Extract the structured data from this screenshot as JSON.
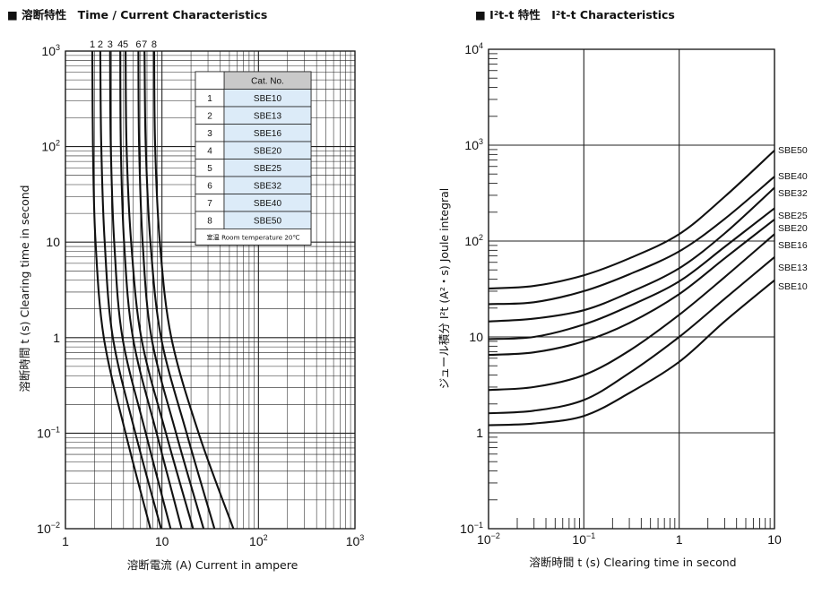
{
  "chart_data": [
    {
      "type": "line",
      "title": "■ 溶断特性　Time / Current Characteristics",
      "xlabel": "溶断電流 (A)  Current in ampere",
      "ylabel": "溶断時間 t (s)  Clearing time in second",
      "xscale": "log",
      "yscale": "log",
      "xlim": [
        1,
        1000
      ],
      "ylim": [
        0.01,
        1000
      ],
      "x_ticks": [
        {
          "base": "1",
          "exp": ""
        },
        {
          "base": "10",
          "exp": ""
        },
        {
          "base": "10",
          "exp": "2"
        },
        {
          "base": "10",
          "exp": "3"
        }
      ],
      "y_ticks": [
        {
          "base": "10",
          "exp": "−2"
        },
        {
          "base": "10",
          "exp": "−1"
        },
        {
          "base": "1",
          "exp": ""
        },
        {
          "base": "10",
          "exp": ""
        },
        {
          "base": "10",
          "exp": "2"
        },
        {
          "base": "10",
          "exp": "3"
        }
      ],
      "grid": true,
      "curve_labels": [
        "1",
        "2",
        "3",
        "4",
        "5",
        "6",
        "7",
        "8"
      ],
      "table": {
        "header": "Cat. No.",
        "rows": [
          {
            "no": "1",
            "cat": "SBE10"
          },
          {
            "no": "2",
            "cat": "SBE13"
          },
          {
            "no": "3",
            "cat": "SBE16"
          },
          {
            "no": "4",
            "cat": "SBE20"
          },
          {
            "no": "5",
            "cat": "SBE25"
          },
          {
            "no": "6",
            "cat": "SBE32"
          },
          {
            "no": "7",
            "cat": "SBE40"
          },
          {
            "no": "8",
            "cat": "SBE50"
          }
        ],
        "note": "室温 Room temperature 20℃"
      },
      "series": [
        {
          "label": "1",
          "points": [
            [
              1.9,
              1000
            ],
            [
              1.93,
              100
            ],
            [
              2.05,
              10
            ],
            [
              2.5,
              1
            ],
            [
              4.2,
              0.1
            ],
            [
              7.6,
              0.01
            ]
          ]
        },
        {
          "label": "2",
          "points": [
            [
              2.3,
              1000
            ],
            [
              2.35,
              100
            ],
            [
              2.55,
              10
            ],
            [
              3.1,
              1
            ],
            [
              5.3,
              0.1
            ],
            [
              9.8,
              0.01
            ]
          ]
        },
        {
          "label": "3",
          "points": [
            [
              2.9,
              1000
            ],
            [
              2.95,
              100
            ],
            [
              3.2,
              10
            ],
            [
              3.9,
              1
            ],
            [
              6.8,
              0.1
            ],
            [
              12.3,
              0.01
            ]
          ]
        },
        {
          "label": "4",
          "points": [
            [
              3.7,
              1000
            ],
            [
              3.75,
              100
            ],
            [
              4.05,
              10
            ],
            [
              5.0,
              1
            ],
            [
              8.8,
              0.1
            ],
            [
              16,
              0.01
            ]
          ]
        },
        {
          "label": "5",
          "points": [
            [
              4.2,
              1000
            ],
            [
              4.3,
              100
            ],
            [
              4.8,
              10
            ],
            [
              6.1,
              1
            ],
            [
              11,
              0.1
            ],
            [
              21,
              0.01
            ]
          ]
        },
        {
          "label": "6",
          "points": [
            [
              5.7,
              1000
            ],
            [
              5.8,
              100
            ],
            [
              6.3,
              10
            ],
            [
              7.8,
              1
            ],
            [
              14,
              0.1
            ],
            [
              27,
              0.01
            ]
          ]
        },
        {
          "label": "7",
          "points": [
            [
              6.6,
              1000
            ],
            [
              6.8,
              100
            ],
            [
              7.6,
              10
            ],
            [
              9.8,
              1
            ],
            [
              18,
              0.1
            ],
            [
              35,
              0.01
            ]
          ]
        },
        {
          "label": "8",
          "points": [
            [
              8.3,
              1000
            ],
            [
              8.5,
              100
            ],
            [
              9.5,
              10
            ],
            [
              12.5,
              1
            ],
            [
              24,
              0.1
            ],
            [
              55,
              0.01
            ]
          ]
        }
      ]
    },
    {
      "type": "line",
      "title": "■ I²t-t 特性　I²t-t Characteristics",
      "xlabel": "溶断時間 t (s)  Clearing time in second",
      "ylabel": "ジュール積分 I²t (A²・s)  Joule integral",
      "xscale": "log",
      "yscale": "log",
      "xlim": [
        0.01,
        10
      ],
      "ylim": [
        0.1,
        10000
      ],
      "x_ticks": [
        {
          "base": "10",
          "exp": "−2"
        },
        {
          "base": "10",
          "exp": "−1"
        },
        {
          "base": "1",
          "exp": ""
        },
        {
          "base": "10",
          "exp": ""
        }
      ],
      "y_ticks": [
        {
          "base": "10",
          "exp": "−1"
        },
        {
          "base": "1",
          "exp": ""
        },
        {
          "base": "10",
          "exp": ""
        },
        {
          "base": "10",
          "exp": "2"
        },
        {
          "base": "10",
          "exp": "3"
        },
        {
          "base": "10",
          "exp": "4"
        }
      ],
      "grid": true,
      "series": [
        {
          "name": "SBE50",
          "points": [
            [
              0.01,
              32
            ],
            [
              0.03,
              34
            ],
            [
              0.1,
              44
            ],
            [
              0.3,
              66
            ],
            [
              1,
              118
            ],
            [
              3,
              290
            ],
            [
              10,
              880
            ]
          ]
        },
        {
          "name": "SBE40",
          "points": [
            [
              0.01,
              22
            ],
            [
              0.03,
              23
            ],
            [
              0.1,
              30
            ],
            [
              0.3,
              45
            ],
            [
              1,
              78
            ],
            [
              3,
              170
            ],
            [
              10,
              470
            ]
          ]
        },
        {
          "name": "SBE32",
          "points": [
            [
              0.01,
              14.5
            ],
            [
              0.03,
              15.5
            ],
            [
              0.1,
              19
            ],
            [
              0.3,
              29
            ],
            [
              1,
              52
            ],
            [
              3,
              120
            ],
            [
              10,
              360
            ]
          ]
        },
        {
          "name": "SBE25",
          "points": [
            [
              0.01,
              9.5
            ],
            [
              0.03,
              10
            ],
            [
              0.1,
              13.5
            ],
            [
              0.3,
              21
            ],
            [
              1,
              38
            ],
            [
              3,
              87
            ],
            [
              10,
              220
            ]
          ]
        },
        {
          "name": "SBE20",
          "points": [
            [
              0.01,
              6.5
            ],
            [
              0.03,
              6.9
            ],
            [
              0.1,
              9
            ],
            [
              0.3,
              14
            ],
            [
              1,
              28
            ],
            [
              3,
              66
            ],
            [
              10,
              168
            ]
          ]
        },
        {
          "name": "SBE16",
          "points": [
            [
              0.01,
              2.8
            ],
            [
              0.03,
              3.0
            ],
            [
              0.1,
              4.0
            ],
            [
              0.3,
              7.2
            ],
            [
              1,
              17
            ],
            [
              3,
              42
            ],
            [
              10,
              118
            ]
          ]
        },
        {
          "name": "SBE13",
          "points": [
            [
              0.01,
              1.6
            ],
            [
              0.03,
              1.7
            ],
            [
              0.1,
              2.2
            ],
            [
              0.3,
              4.2
            ],
            [
              1,
              10
            ],
            [
              3,
              25
            ],
            [
              10,
              68
            ]
          ]
        },
        {
          "name": "SBE10",
          "points": [
            [
              0.01,
              1.2
            ],
            [
              0.03,
              1.25
            ],
            [
              0.1,
              1.5
            ],
            [
              0.3,
              2.6
            ],
            [
              1,
              5.5
            ],
            [
              3,
              14.5
            ],
            [
              10,
              39
            ]
          ]
        }
      ]
    }
  ]
}
